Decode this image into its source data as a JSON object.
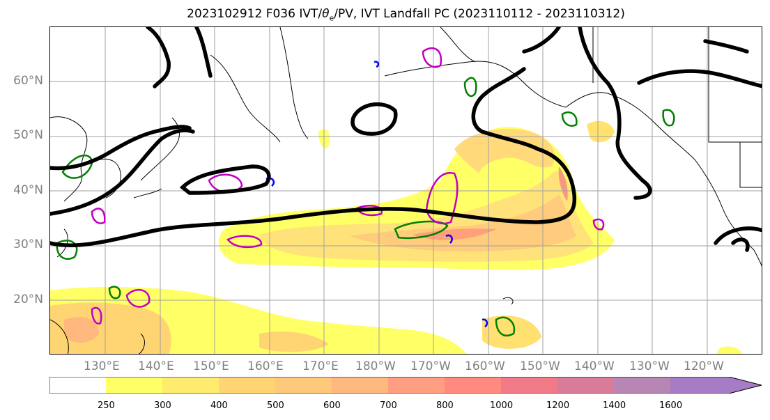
{
  "title": {
    "prefix": "2023102912 F036 IVT/",
    "theta": "θ",
    "theta_sub": "e",
    "suffix": "/PV, IVT Landfall PC (2023110112 - 2023110312)"
  },
  "lat_labels": [
    "60°N",
    "50°N",
    "40°N",
    "30°N",
    "20°N"
  ],
  "lon_labels": [
    "130°E",
    "140°E",
    "150°E",
    "160°E",
    "170°E",
    "180°W",
    "170°W",
    "160°W",
    "150°W",
    "140°W",
    "130°W",
    "120°W"
  ],
  "colorbar": {
    "levels": [
      250,
      300,
      400,
      500,
      600,
      700,
      800,
      1000,
      1200,
      1400,
      1600
    ],
    "tick_labels": [
      "250",
      "300",
      "400",
      "500",
      "600",
      "700",
      "800",
      "1000",
      "1200",
      "1400",
      "1600"
    ],
    "colors": [
      "#ffffff",
      "#ffff66",
      "#ffeb6e",
      "#ffd574",
      "#ffc87a",
      "#ffb87e",
      "#ff9e80",
      "#ff8a80",
      "#f07a88",
      "#d97c99",
      "#b886b4",
      "#a67cc4"
    ]
  },
  "colors": {
    "contour_black": "#000000",
    "contour_green": "#008000",
    "contour_magenta": "#c000c0",
    "contour_blue": "#0000ff",
    "grid": "#a0a0a0",
    "axis_labels": "#808080"
  }
}
